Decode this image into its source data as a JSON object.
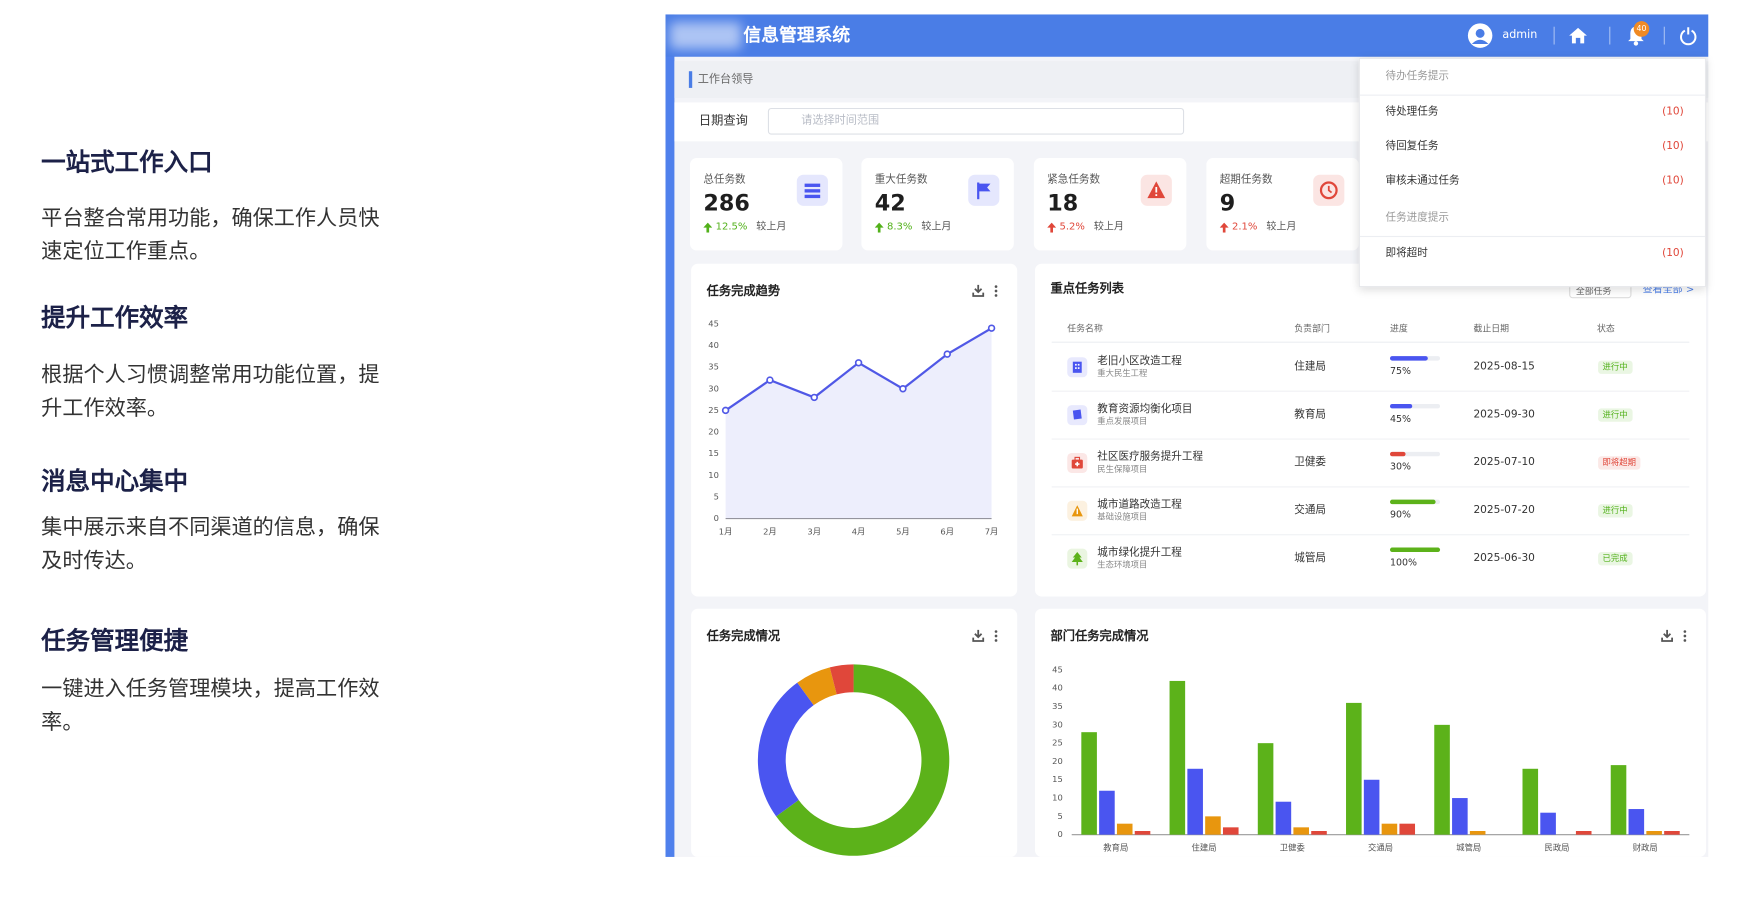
{
  "features": [
    {
      "title": "一站式工作入口",
      "description": "平台整合常用功能，确保工作人员快速定位工作重点。"
    },
    {
      "title": "提升工作效率",
      "description": "根据个人习惯调整常用功能位置，提升工作效率。"
    },
    {
      "title": "消息中心集中",
      "description": "集中展示来自不同渠道的信息，确保及时传达。"
    },
    {
      "title": "任务管理便捷",
      "description": "一键进入任务管理模块，提高工作效率。"
    }
  ],
  "header": {
    "title": "信息管理系统",
    "user": "admin",
    "notification_count": 40
  },
  "breadcrumb": "工作台领导",
  "date_query": {
    "label": "日期查询",
    "placeholder": "请选择时间范围"
  },
  "stats": [
    {
      "label": "总任务数",
      "value": 286,
      "change": "12.5%",
      "compare": "较上月",
      "trend_color": "#52b11a",
      "icon_color": "#4a55f0"
    },
    {
      "label": "重大任务数",
      "value": 42,
      "change": "8.3%",
      "compare": "较上月",
      "trend_color": "#52b11a",
      "icon_color": "#4a55f0"
    },
    {
      "label": "紧急任务数",
      "value": 18,
      "change": "5.2%",
      "compare": "较上月",
      "trend_color": "#e0473a",
      "icon_color": "#e0473a"
    },
    {
      "label": "超期任务数",
      "value": 9,
      "change": "2.1%",
      "compare": "较上月",
      "trend_color": "#e0473a",
      "icon_color": "#e0473a"
    }
  ],
  "trend_chart": {
    "type": "line",
    "title": "任务完成趋势",
    "categories": [
      "1月",
      "2月",
      "3月",
      "4月",
      "5月",
      "6月",
      "7月"
    ],
    "values": [
      25,
      32,
      28,
      36,
      30,
      38,
      44
    ],
    "color": "#5058e6",
    "ylim": [
      0,
      45
    ],
    "yticks": [
      0,
      5,
      10,
      15,
      20,
      25,
      30,
      35,
      40,
      45
    ],
    "grid": false
  },
  "task_table": {
    "title": "重点任务列表",
    "filter": "全部任务",
    "link": "查看全部 >",
    "columns": [
      "任务名称",
      "负责部门",
      "进度",
      "截止日期",
      "状态"
    ],
    "rows": [
      {
        "name": "老旧小区改造工程",
        "category": "重大民生工程",
        "department": "住建局",
        "progress": 75,
        "progress_label": "75%",
        "deadline": "2025-08-15",
        "status": "进行中",
        "icon_color": "#4a55f0",
        "progress_color": "#4a55f0",
        "status_color": "#52b11a"
      },
      {
        "name": "教育资源均衡化项目",
        "category": "重点发展项目",
        "department": "教育局",
        "progress": 45,
        "progress_label": "45%",
        "deadline": "2025-09-30",
        "status": "进行中",
        "icon_color": "#4a55f0",
        "progress_color": "#4a55f0",
        "status_color": "#52b11a"
      },
      {
        "name": "社区医疗服务提升工程",
        "category": "民生保障项目",
        "department": "卫健委",
        "progress": 30,
        "progress_label": "30%",
        "deadline": "2025-07-10",
        "status": "即将超期",
        "icon_color": "#e0473a",
        "progress_color": "#e0473a",
        "status_color": "#e0473a"
      },
      {
        "name": "城市道路改造工程",
        "category": "基础设施项目",
        "department": "交通局",
        "progress": 90,
        "progress_label": "90%",
        "deadline": "2025-07-20",
        "status": "进行中",
        "icon_color": "#e8960e",
        "progress_color": "#5cb21a",
        "status_color": "#52b11a"
      },
      {
        "name": "城市绿化提升工程",
        "category": "生态环境项目",
        "department": "城管局",
        "progress": 100,
        "progress_label": "100%",
        "deadline": "2025-06-30",
        "status": "已完成",
        "icon_color": "#5cb21a",
        "progress_color": "#5cb21a",
        "status_color": "#52b11a"
      }
    ]
  },
  "completion_chart": {
    "type": "donut",
    "title": "任务完成情况",
    "values": [
      65,
      25,
      6,
      4
    ],
    "colors": [
      "#5cb21a",
      "#4a55f0",
      "#e8960e",
      "#e0473a"
    ]
  },
  "department_chart": {
    "type": "bar",
    "title": "部门任务完成情况",
    "categories": [
      "教育局",
      "住建局",
      "卫健委",
      "交通局",
      "城管局",
      "民政局",
      "财政局"
    ],
    "series": [
      {
        "color": "#5cb21a",
        "values": [
          28,
          42,
          25,
          36,
          30,
          18,
          19
        ]
      },
      {
        "color": "#4a55f0",
        "values": [
          12,
          18,
          9,
          15,
          10,
          6,
          7
        ]
      },
      {
        "color": "#e8960e",
        "values": [
          3,
          5,
          2,
          3,
          1,
          0,
          1
        ]
      },
      {
        "color": "#e0473a",
        "values": [
          1,
          2,
          1,
          3,
          0,
          1,
          1
        ]
      }
    ],
    "ylim": [
      0,
      45
    ],
    "yticks": [
      0,
      5,
      10,
      15,
      20,
      25,
      30,
      35,
      40,
      45
    ],
    "grid": false
  },
  "notifications": {
    "sections": [
      {
        "title": "待办任务提示",
        "items": [
          {
            "name": "待处理任务",
            "count": "(10)"
          },
          {
            "name": "待回复任务",
            "count": "(10)"
          },
          {
            "name": "审核未通过任务",
            "count": "(10)"
          }
        ]
      },
      {
        "title": "任务进度提示",
        "items": [
          {
            "name": "即将超时",
            "count": "(10)"
          }
        ]
      }
    ]
  }
}
